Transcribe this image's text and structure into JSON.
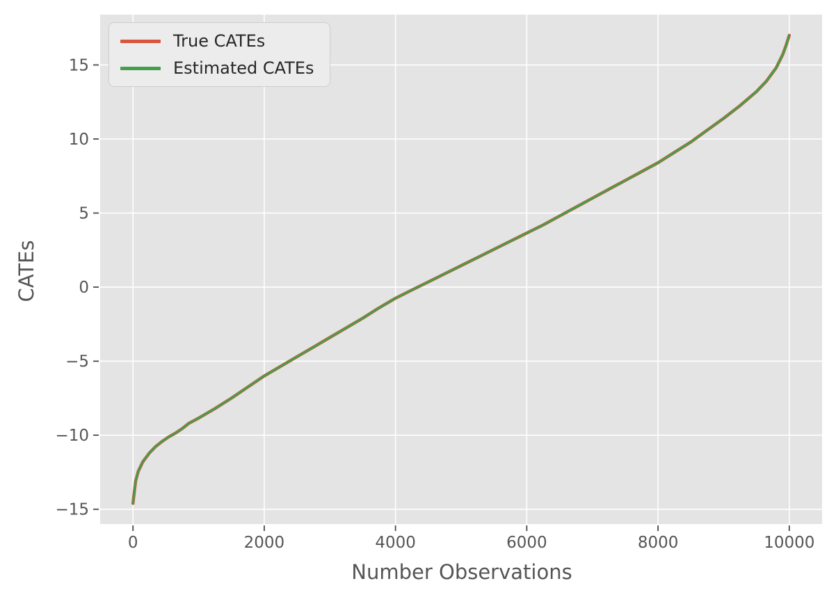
{
  "figure": {
    "background": "#ffffff",
    "plot_background": "#e4e4e4",
    "grid_color": "#ffffff",
    "tick_mark_color": "#4a4a4a",
    "tick_label_color": "#555555",
    "axis_label_color": "#555555",
    "legend_background": "#ececec",
    "legend_border_color": "#cdcdcd",
    "legend_text_color": "#262626"
  },
  "chart_data": {
    "type": "line",
    "title": "",
    "xlabel": "Number Observations",
    "ylabel": "CATEs",
    "xlim": [
      -500,
      10500
    ],
    "ylim": [
      -16.0,
      18.4
    ],
    "x_ticks": [
      0,
      2000,
      4000,
      6000,
      8000,
      10000
    ],
    "y_ticks": [
      -15,
      -10,
      -5,
      0,
      5,
      10,
      15
    ],
    "grid": true,
    "legend_position": "upper left",
    "x": [
      0,
      40,
      80,
      150,
      250,
      350,
      450,
      550,
      650,
      750,
      850,
      1000,
      1250,
      1500,
      1750,
      2000,
      2250,
      2500,
      2750,
      3000,
      3250,
      3500,
      3750,
      4000,
      4250,
      4500,
      4750,
      5000,
      5250,
      5500,
      5750,
      6000,
      6250,
      6500,
      6750,
      7000,
      7250,
      7500,
      7750,
      8000,
      8250,
      8500,
      8750,
      9000,
      9250,
      9500,
      9650,
      9800,
      9900,
      9950,
      10000
    ],
    "series": [
      {
        "name": "True CATEs",
        "color": "#d9553d",
        "line_width": 4.5,
        "values": [
          -14.6,
          -13.1,
          -12.45,
          -11.8,
          -11.2,
          -10.75,
          -10.4,
          -10.1,
          -9.85,
          -9.55,
          -9.2,
          -8.85,
          -8.2,
          -7.5,
          -6.75,
          -6.0,
          -5.35,
          -4.7,
          -4.05,
          -3.4,
          -2.75,
          -2.1,
          -1.4,
          -0.75,
          -0.2,
          0.35,
          0.9,
          1.45,
          2.0,
          2.55,
          3.1,
          3.65,
          4.2,
          4.8,
          5.4,
          6.0,
          6.6,
          7.2,
          7.8,
          8.4,
          9.1,
          9.8,
          10.6,
          11.4,
          12.25,
          13.2,
          13.9,
          14.8,
          15.7,
          16.3,
          17.0
        ]
      },
      {
        "name": "Estimated CATEs",
        "color": "#449e4a",
        "line_width": 3,
        "values": [
          -14.6,
          -13.1,
          -12.45,
          -11.8,
          -11.2,
          -10.75,
          -10.4,
          -10.1,
          -9.85,
          -9.55,
          -9.2,
          -8.85,
          -8.2,
          -7.5,
          -6.75,
          -6.0,
          -5.35,
          -4.7,
          -4.05,
          -3.4,
          -2.75,
          -2.1,
          -1.4,
          -0.75,
          -0.2,
          0.35,
          0.9,
          1.45,
          2.0,
          2.55,
          3.1,
          3.65,
          4.2,
          4.8,
          5.4,
          6.0,
          6.6,
          7.2,
          7.8,
          8.4,
          9.1,
          9.8,
          10.6,
          11.4,
          12.25,
          13.2,
          13.9,
          14.8,
          15.7,
          16.3,
          17.0
        ]
      }
    ]
  }
}
